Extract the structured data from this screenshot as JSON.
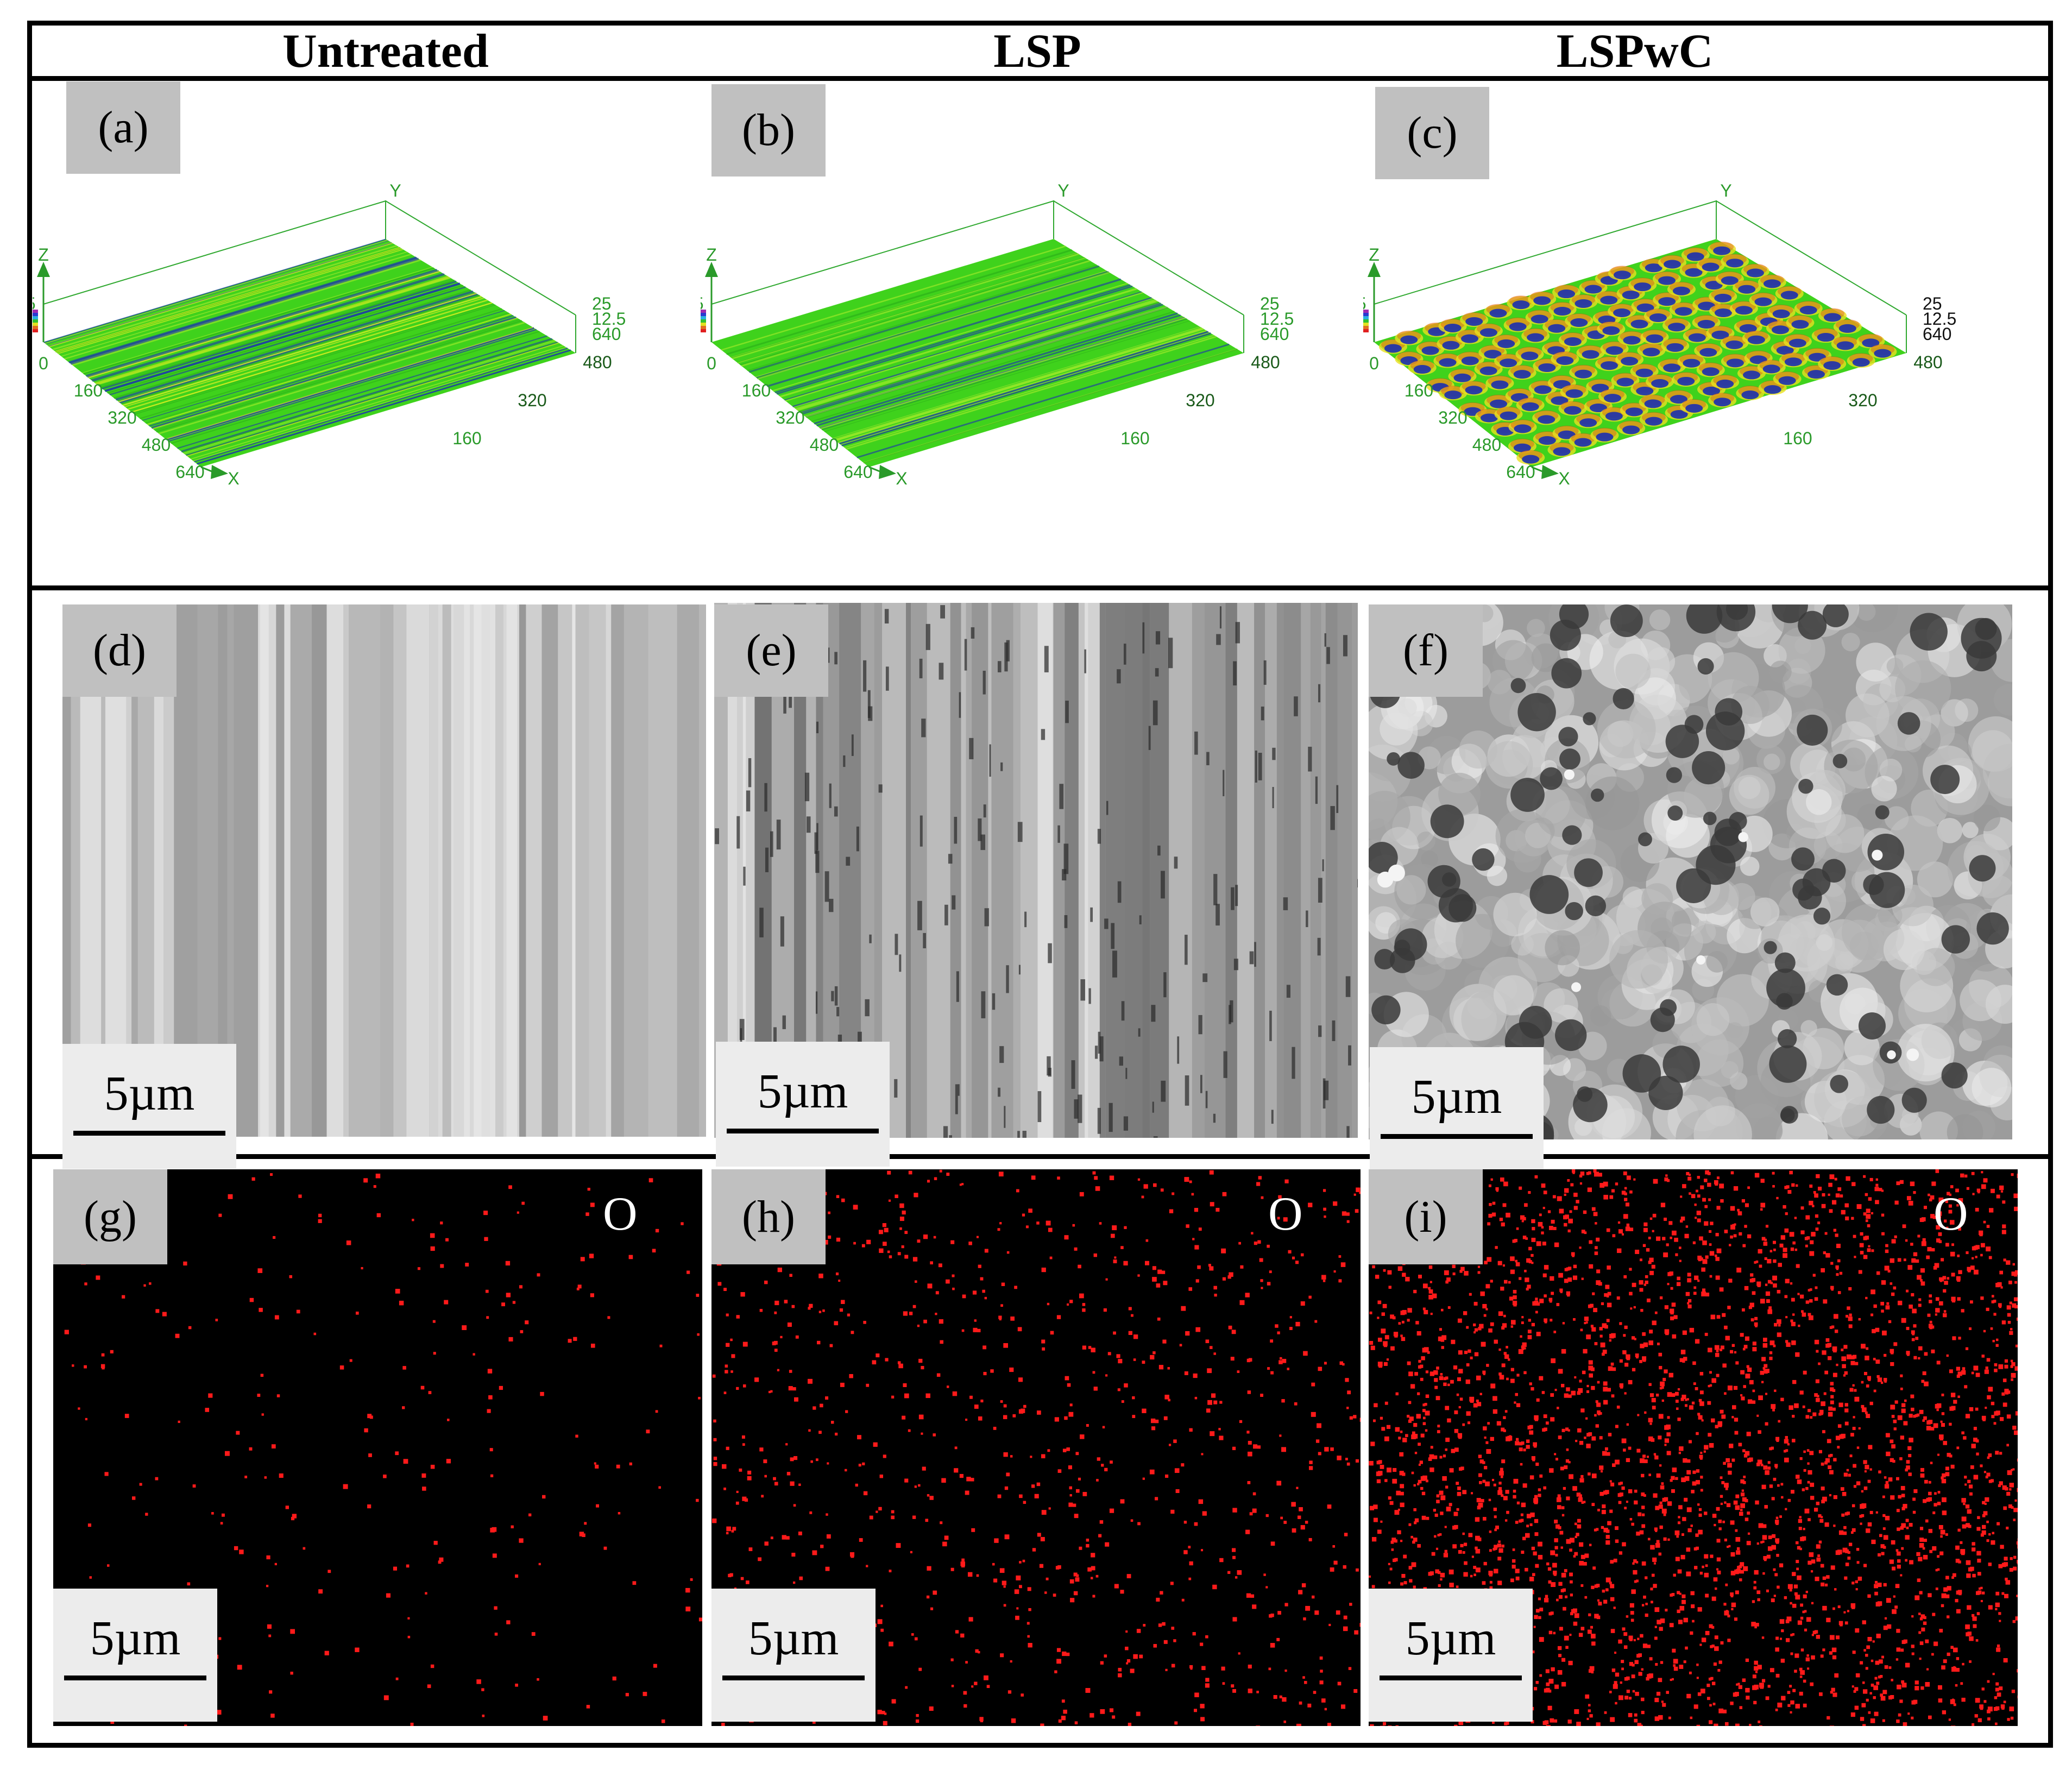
{
  "columns": {
    "untreated": "Untreated",
    "lsp": "LSP",
    "lspwc": "LSPwC"
  },
  "panels": {
    "a": "(a)",
    "b": "(b)",
    "c": "(c)",
    "d": "(d)",
    "e": "(e)",
    "f": "(f)",
    "g": "(g)",
    "h": "(h)",
    "i": "(i)"
  },
  "axes3d": {
    "z_letter": "Z",
    "x_letter": "X",
    "y_letter": "Y",
    "colorbar_top": "25",
    "colorbar_bottom": "0",
    "origin": "0",
    "x_ticks": [
      "160",
      "320",
      "480",
      "640"
    ],
    "y_ticks": [
      "160",
      "320",
      "480",
      "640"
    ],
    "z_ticks": [
      "25",
      "12.5"
    ]
  },
  "scale_bar": "5µm",
  "element_map": "O",
  "colors": {
    "surface_green": "#3fd21c",
    "valley_blue": "#1a2fb0",
    "peak_red": "#e02a10",
    "eds_red": "#ff1a1a",
    "sem_light": "#c8c8c8",
    "sem_dark": "#5a5a5a"
  }
}
